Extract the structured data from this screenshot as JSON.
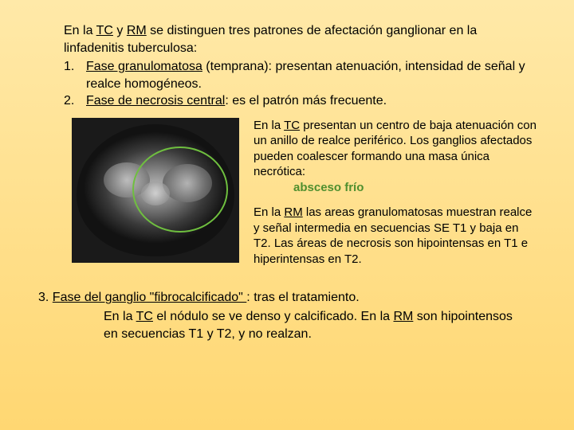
{
  "colors": {
    "ellipse_stroke": "#6fbf3f",
    "absceso_color": "#4f8f2f"
  },
  "intro": {
    "part1": "En la ",
    "tc": "TC",
    "part2": " y ",
    "rm": "RM",
    "part3": " se distinguen tres patrones de afectación ganglionar en la linfadenitis tuberculosa:"
  },
  "item1": {
    "num": "1.",
    "phase": "Fase granulomatosa",
    "rest": " (temprana): presentan atenuación, intensidad de señal y realce homogéneos."
  },
  "item2": {
    "num": "2.",
    "phase": "Fase de necrosis central",
    "rest": ": es el patrón más frecuente."
  },
  "right_p1": {
    "a": "En la ",
    "tc": "TC",
    "b": " presentan un centro de baja atenuación con un anillo de realce periférico. Los ganglios afectados pueden coalescer formando una masa única necrótica:"
  },
  "absceso": "absceso frío",
  "right_p2": {
    "a": " En la ",
    "rm": "RM",
    "b": "  las areas granulomatosas muestran realce y señal intermedia en secuencias SE T1 y baja en T2. Las  áreas de necrosis son hipointensas en T1 e hiperintensas en T2."
  },
  "item3": {
    "head_a": "3.  ",
    "phase": "Fase del ganglio \"fibrocalcificado\" ",
    "head_b": ": tras el tratamiento.",
    "body_a": " En la ",
    "tc": "TC",
    "body_b": " el nódulo se ve denso y calcificado. En la ",
    "rm": "RM",
    "body_c": "  son hipointensos en secuencias  T1 y T2, y no realzan."
  }
}
